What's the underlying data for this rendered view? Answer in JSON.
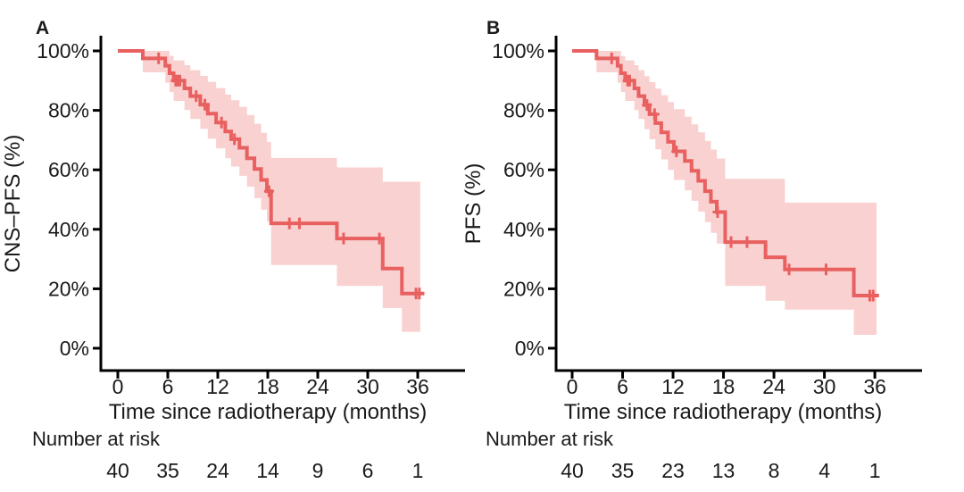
{
  "figure": {
    "background": "#ffffff",
    "curve_color": "#e8605f",
    "band_color": "#f9d1d0",
    "axis_color": "#000000",
    "text_color": "#1a1a1a"
  },
  "chart_data": [
    {
      "panel_label": "A",
      "type": "line",
      "subtype": "kaplan-meier-with-confidence-band",
      "title": "",
      "ylabel": "CNS–PFS (%)",
      "xlabel": "Time since radiotherapy (months)",
      "xticks": [
        0,
        6,
        12,
        18,
        24,
        30,
        36
      ],
      "ytick_labels": [
        "0%",
        "20%",
        "40%",
        "60%",
        "80%",
        "100%"
      ],
      "yticks": [
        0,
        20,
        40,
        60,
        80,
        100
      ],
      "xlim": [
        0,
        38
      ],
      "ylim": [
        0,
        100
      ],
      "grid": false,
      "legend": "none",
      "risk_header": "Number at risk",
      "risk_times": [
        0,
        6,
        12,
        18,
        24,
        30,
        36
      ],
      "number_at_risk": [
        40,
        35,
        24,
        14,
        9,
        6,
        1
      ],
      "steps": [
        [
          0,
          100,
          100,
          100
        ],
        [
          3.0,
          97.5,
          92.8,
          100
        ],
        [
          5.7,
          95.0,
          89.3,
          100
        ],
        [
          6.2,
          92.5,
          86.2,
          98.3
        ],
        [
          6.7,
          90.0,
          83.2,
          96.8
        ],
        [
          8.0,
          87.4,
          80.1,
          95.2
        ],
        [
          8.7,
          84.8,
          77.1,
          93.5
        ],
        [
          9.9,
          81.9,
          73.8,
          91.6
        ],
        [
          10.8,
          78.9,
          70.5,
          89.6
        ],
        [
          11.8,
          75.9,
          67.2,
          87.5
        ],
        [
          12.9,
          72.9,
          63.9,
          85.3
        ],
        [
          13.6,
          70.3,
          61.1,
          83.4
        ],
        [
          14.6,
          67.4,
          58.0,
          81.2
        ],
        [
          15.5,
          63.9,
          54.3,
          78.4
        ],
        [
          16.4,
          60.3,
          50.5,
          75.5
        ],
        [
          17.2,
          56.6,
          46.6,
          72.5
        ],
        [
          17.9,
          52.8,
          42.7,
          69.4
        ],
        [
          18.4,
          42.0,
          28.0,
          64.0
        ],
        [
          26.3,
          36.9,
          21.0,
          60.8
        ],
        [
          31.8,
          26.8,
          13.5,
          56.0
        ],
        [
          34.1,
          18.4,
          5.5,
          56.0
        ]
      ],
      "censors": [
        [
          4.9,
          97.5
        ],
        [
          6.95,
          90.0
        ],
        [
          7.2,
          90.0
        ],
        [
          7.45,
          90.0
        ],
        [
          9.4,
          84.8
        ],
        [
          10.45,
          81.9
        ],
        [
          12.45,
          75.9
        ],
        [
          14.0,
          70.3
        ],
        [
          18.15,
          52.8
        ],
        [
          20.6,
          42.0
        ],
        [
          21.8,
          42.0
        ],
        [
          27.1,
          36.9
        ],
        [
          31.4,
          36.9
        ],
        [
          35.8,
          18.4
        ],
        [
          36.2,
          18.4
        ]
      ],
      "curve_end": 36.8,
      "band_end": 36.3
    },
    {
      "panel_label": "B",
      "type": "line",
      "subtype": "kaplan-meier-with-confidence-band",
      "title": "",
      "ylabel": "PFS (%)",
      "xlabel": "Time since radiotherapy (months)",
      "xticks": [
        0,
        6,
        12,
        18,
        24,
        30,
        36
      ],
      "ytick_labels": [
        "0%",
        "20%",
        "40%",
        "60%",
        "80%",
        "100%"
      ],
      "yticks": [
        0,
        20,
        40,
        60,
        80,
        100
      ],
      "xlim": [
        0,
        38
      ],
      "ylim": [
        0,
        100
      ],
      "grid": false,
      "legend": "none",
      "risk_header": "Number at risk",
      "risk_times": [
        0,
        6,
        12,
        18,
        24,
        30,
        36
      ],
      "number_at_risk": [
        40,
        35,
        23,
        13,
        8,
        4,
        1
      ],
      "steps": [
        [
          0,
          100,
          100,
          100
        ],
        [
          2.9,
          97.5,
          92.8,
          100
        ],
        [
          5.4,
          95.0,
          89.3,
          100
        ],
        [
          5.8,
          92.5,
          86.2,
          98.3
        ],
        [
          6.3,
          90.0,
          83.2,
          96.8
        ],
        [
          7.4,
          87.4,
          80.1,
          95.2
        ],
        [
          7.9,
          84.8,
          77.1,
          93.5
        ],
        [
          8.6,
          81.8,
          73.7,
          91.5
        ],
        [
          9.2,
          78.7,
          70.3,
          89.5
        ],
        [
          9.9,
          75.7,
          66.9,
          87.3
        ],
        [
          10.6,
          72.6,
          63.5,
          85.1
        ],
        [
          11.4,
          69.4,
          60.0,
          82.8
        ],
        [
          12.1,
          66.2,
          56.6,
          80.4
        ],
        [
          13.4,
          63.0,
          53.1,
          77.9
        ],
        [
          14.2,
          59.7,
          49.6,
          75.3
        ],
        [
          15.0,
          56.3,
          46.0,
          72.6
        ],
        [
          15.8,
          52.8,
          42.4,
          69.7
        ],
        [
          16.5,
          49.3,
          38.8,
          66.8
        ],
        [
          17.2,
          45.8,
          35.2,
          63.8
        ],
        [
          18.2,
          35.7,
          21.0,
          57.0
        ],
        [
          23.0,
          30.6,
          16.0,
          57.0
        ],
        [
          25.3,
          26.5,
          13.0,
          49.0
        ],
        [
          33.5,
          17.7,
          4.5,
          49.0
        ]
      ],
      "censors": [
        [
          4.7,
          97.5
        ],
        [
          6.6,
          90.0
        ],
        [
          6.85,
          90.0
        ],
        [
          8.9,
          81.8
        ],
        [
          9.8,
          78.7
        ],
        [
          12.4,
          66.2
        ],
        [
          17.3,
          45.8
        ],
        [
          18.9,
          35.7
        ],
        [
          20.8,
          35.7
        ],
        [
          25.8,
          26.5
        ],
        [
          30.2,
          26.5
        ],
        [
          35.4,
          17.7
        ],
        [
          35.8,
          17.7
        ]
      ],
      "curve_end": 36.5,
      "band_end": 36.2
    }
  ]
}
